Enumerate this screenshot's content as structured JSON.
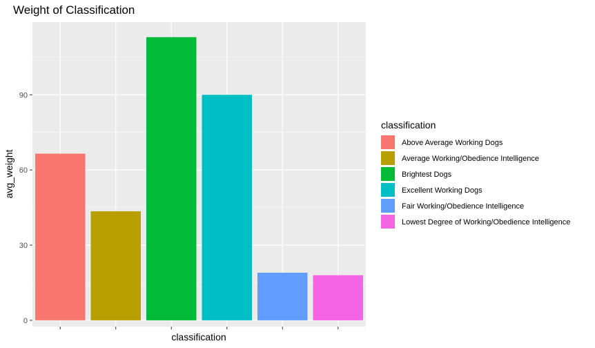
{
  "chart_data": {
    "type": "bar",
    "title": "Weight of Classification",
    "xlabel": "classification",
    "ylabel": "avg_weight",
    "ylim": [
      -2.5,
      119
    ],
    "yticks": [
      0,
      30,
      60,
      90
    ],
    "grid": true,
    "legend_position": "right",
    "legend_title": "classification",
    "categories": [
      "Above Average Working Dogs",
      "Average Working/Obedience Intelligence",
      "Brightest Dogs",
      "Excellent Working Dogs",
      "Fair Working/Obedience Intelligence",
      "Lowest Degree of Working/Obedience Intelligence"
    ],
    "values": [
      66.5,
      43.5,
      113,
      90,
      19,
      18
    ],
    "colors": [
      "#F8766D",
      "#B79F00",
      "#00BA38",
      "#00BFC4",
      "#619CFF",
      "#F564E3"
    ]
  }
}
